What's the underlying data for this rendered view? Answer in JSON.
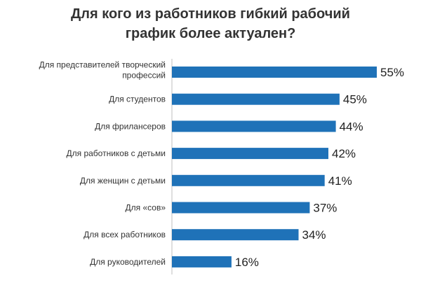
{
  "chart_data": {
    "type": "bar",
    "orientation": "horizontal",
    "title": "Для кого из работников гибкий рабочий\nграфик более актуален?",
    "categories": [
      [
        "Для представителей творческий",
        "профессий"
      ],
      [
        "Для студентов"
      ],
      [
        "Для фрилансеров"
      ],
      [
        "Для работников с детьми"
      ],
      [
        "Для женщин с детьми"
      ],
      [
        "Для «сов»"
      ],
      [
        "Для всех работников"
      ],
      [
        "Для руководителей"
      ]
    ],
    "values": [
      55,
      45,
      44,
      42,
      41,
      37,
      34,
      16
    ],
    "value_suffix": "%",
    "xlim": [
      0,
      55
    ],
    "grid": false,
    "legend": "none",
    "bar_color": "#1f72b8",
    "axis_color": "#bfbfbf"
  }
}
